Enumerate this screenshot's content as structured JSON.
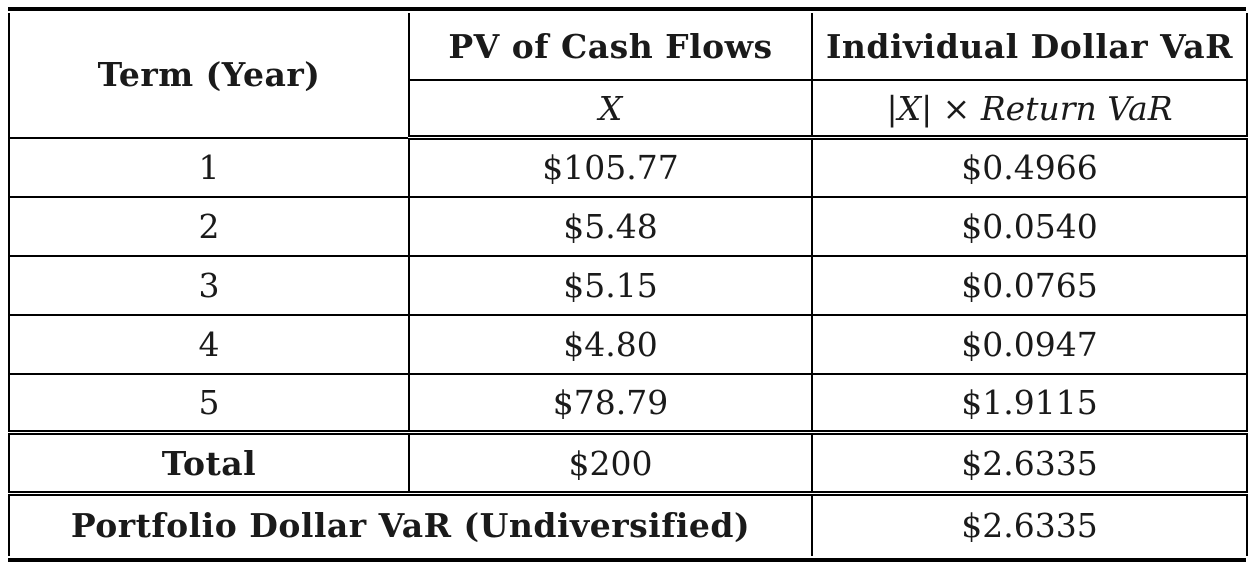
{
  "table": {
    "header": {
      "term": "Term (Year)",
      "pv": "PV of Cash Flows",
      "var": "Individual Dollar VaR",
      "pv_sub": "X",
      "var_sub": "|X| × Return VaR"
    },
    "rows": [
      {
        "term": "1",
        "pv": "$105.77",
        "var": "$0.4966"
      },
      {
        "term": "2",
        "pv": "$5.48",
        "var": "$0.0540"
      },
      {
        "term": "3",
        "pv": "$5.15",
        "var": "$0.0765"
      },
      {
        "term": "4",
        "pv": "$4.80",
        "var": "$0.0947"
      },
      {
        "term": "5",
        "pv": "$78.79",
        "var": "$1.9115"
      }
    ],
    "total": {
      "label": "Total",
      "pv": "$200",
      "var": "$2.6335"
    },
    "portfolio": {
      "label": "Portfolio Dollar VaR (Undiversified)",
      "value": "$2.6335"
    }
  }
}
